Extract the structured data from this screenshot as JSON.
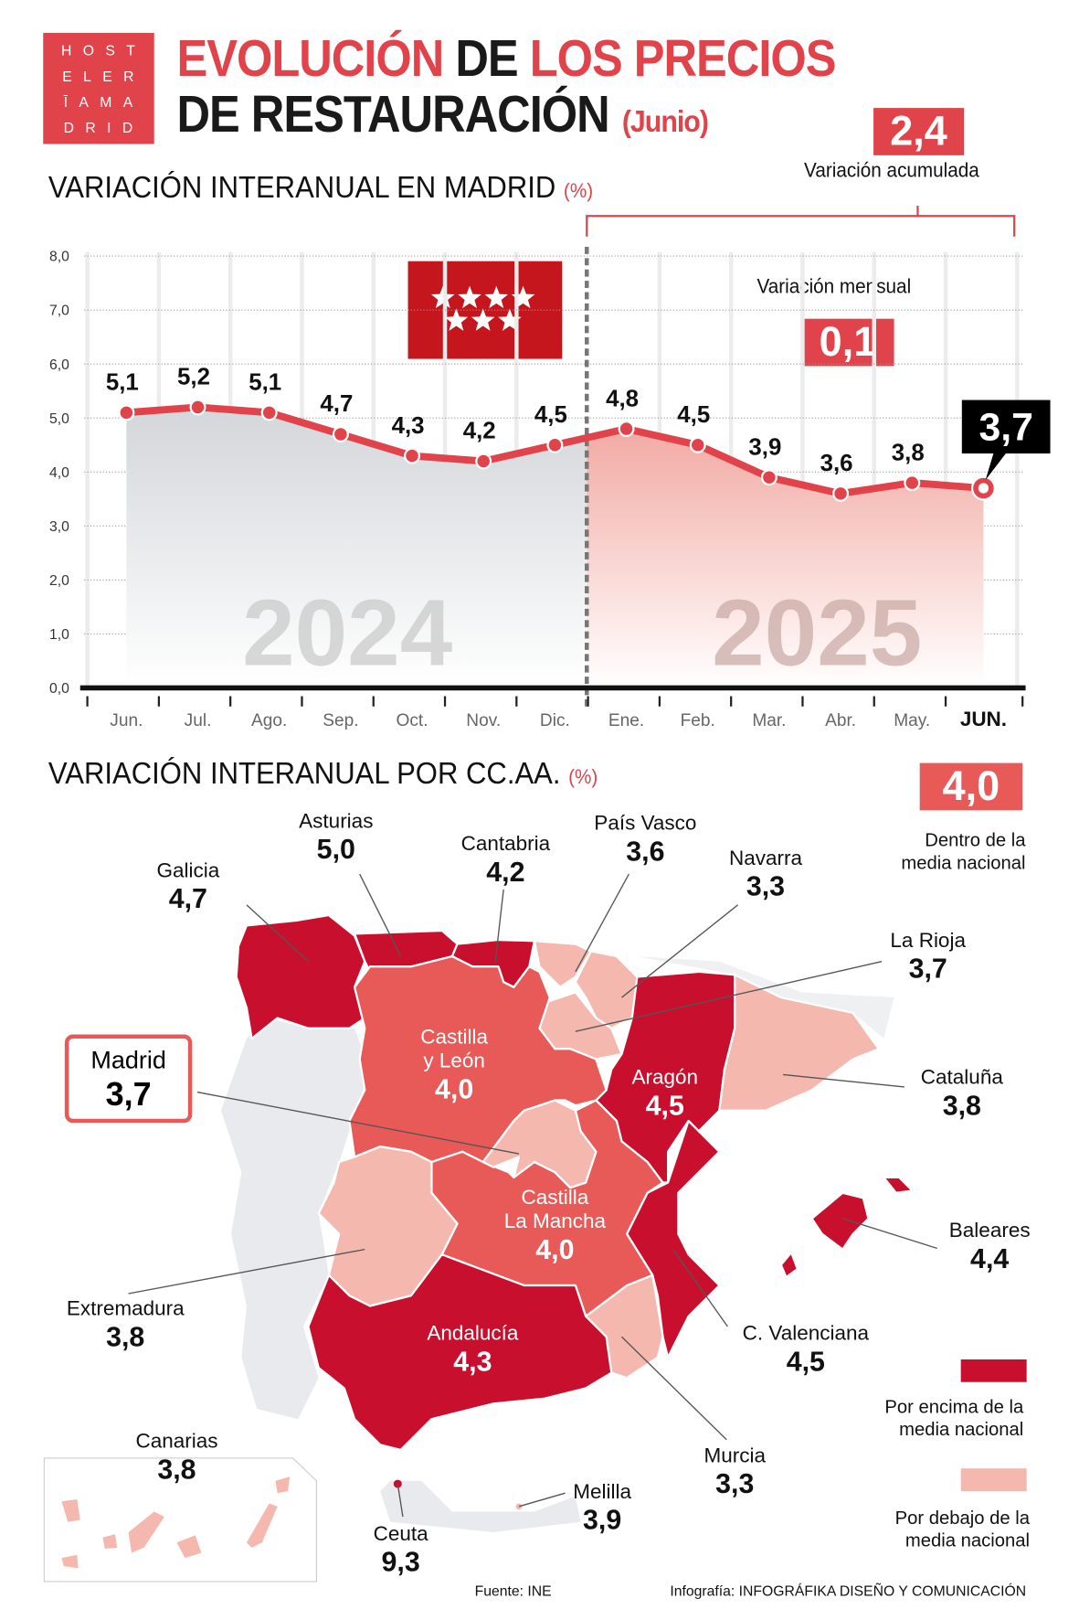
{
  "logo": {
    "lines": [
      "HOST",
      "ELER",
      "ĪAMA",
      "DRID"
    ]
  },
  "title": {
    "part1_red": "EVOLUCIÓN",
    "part1_dark": "DE",
    "part1_red2": "LOS PRECIOS",
    "line2": "DE RESTAURACIÓN",
    "month": "(Junio)"
  },
  "madrid_section": {
    "title": "VARIACIÓN INTERANUAL EN MADRID",
    "unit": "(%)",
    "accumulated_value": "2,4",
    "accumulated_label": "Variación acumulada",
    "monthly_label": "Variación mensual",
    "monthly_value": "0,1",
    "highlight_value": "3,7",
    "flag": "Madrid region flag"
  },
  "chart_data": {
    "type": "area",
    "categories": [
      "Jun.",
      "Jul.",
      "Ago.",
      "Sep.",
      "Oct.",
      "Nov.",
      "Dic.",
      "Ene.",
      "Feb.",
      "Mar.",
      "Abr.",
      "May.",
      "JUN."
    ],
    "values": [
      5.1,
      5.2,
      5.1,
      4.7,
      4.3,
      4.2,
      4.5,
      4.8,
      4.5,
      3.9,
      3.6,
      3.8,
      3.7
    ],
    "value_labels": [
      "5,1",
      "5,2",
      "5,1",
      "4,7",
      "4,3",
      "4,2",
      "4,5",
      "4,8",
      "4,5",
      "3,9",
      "3,6",
      "3,8",
      "3,7"
    ],
    "year_labels": [
      "2024",
      "2025"
    ],
    "yticks": [
      "0,0",
      "1,0",
      "2,0",
      "3,0",
      "4,0",
      "5,0",
      "6,0",
      "7,0",
      "8,0"
    ],
    "ylim": [
      0,
      8
    ],
    "grid": true,
    "colors": {
      "line": "#e1434b",
      "area_2024": "#d3d6da",
      "area_2025": "#f2aaa3"
    }
  },
  "ccaa_section": {
    "title": "VARIACIÓN INTERANUAL POR CC.AA.",
    "unit": "(%)",
    "national_value": "4,0",
    "national_label": [
      "Dentro de la",
      "media nacional"
    ],
    "legend": {
      "above": [
        "Por encima de la",
        "media nacional"
      ],
      "below": [
        "Por debajo de la",
        "media nacional"
      ],
      "above_color": "#c8102e",
      "below_color": "#f4b8ae",
      "within_color": "#e85a58"
    },
    "regions": {
      "galicia": {
        "name": "Galicia",
        "value": "4,7"
      },
      "asturias": {
        "name": "Asturias",
        "value": "5,0"
      },
      "cantabria": {
        "name": "Cantabria",
        "value": "4,2"
      },
      "pais_vasco": {
        "name": "País Vasco",
        "value": "3,6"
      },
      "navarra": {
        "name": "Navarra",
        "value": "3,3"
      },
      "la_rioja": {
        "name": "La Rioja",
        "value": "3,7"
      },
      "castilla_leon": {
        "name1": "Castilla",
        "name2": "y León",
        "value": "4,0"
      },
      "madrid": {
        "name": "Madrid",
        "value": "3,7"
      },
      "aragon": {
        "name": "Aragón",
        "value": "4,5"
      },
      "cataluna": {
        "name": "Cataluña",
        "value": "3,8"
      },
      "castilla_mancha": {
        "name1": "Castilla",
        "name2": "La Mancha",
        "value": "4,0"
      },
      "baleares": {
        "name": "Baleares",
        "value": "4,4"
      },
      "extremadura": {
        "name": "Extremadura",
        "value": "3,8"
      },
      "c_valenciana": {
        "name": "C. Valenciana",
        "value": "4,5"
      },
      "andalucia": {
        "name": "Andalucía",
        "value": "4,3"
      },
      "murcia": {
        "name": "Murcia",
        "value": "3,3"
      },
      "canarias": {
        "name": "Canarias",
        "value": "3,8"
      },
      "ceuta": {
        "name": "Ceuta",
        "value": "9,3"
      },
      "melilla": {
        "name": "Melilla",
        "value": "3,9"
      }
    }
  },
  "footer": {
    "source": "Fuente: INE",
    "credit_prefix": "Infografía:",
    "credit": "INFOGRÁFIKA DISEÑO Y COMUNICACIÓN"
  }
}
